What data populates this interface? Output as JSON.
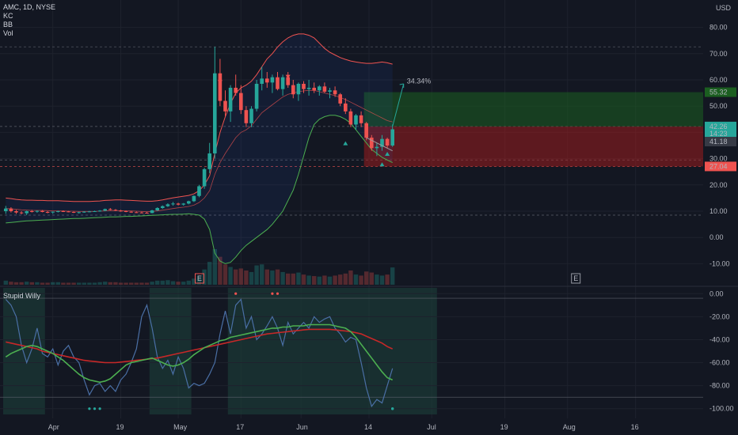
{
  "colors": {
    "background": "#131722",
    "grid": "#1e222d",
    "up": "#26a69a",
    "down": "#ef5350",
    "kc_band": "#ef5350",
    "bb_band": "#4caf50",
    "mid_line": "#ef5350",
    "willy_blue": "#4a6fa5",
    "willy_green": "#4caf50",
    "willy_red": "#c62828",
    "target_zone": "#1b5e20",
    "stop_zone": "#b71c1c",
    "axis_text": "#b2b5be"
  },
  "header": {
    "symbol": "AMC, 1D, NYSE",
    "indicators": [
      "KC",
      "BB",
      "Vol"
    ],
    "currency": "USD"
  },
  "lower_pane": {
    "title": "Stupid Willy"
  },
  "price_tags": {
    "target": "55.32",
    "entry": "42.26",
    "entry_sub": "14:23",
    "close": "41.18",
    "stop": "27.04",
    "gain_label": "34.34%"
  },
  "event_markers": [
    "E",
    "E"
  ],
  "chart_data": [
    {
      "type": "candlestick",
      "title": "",
      "ylim": [
        -15,
        85
      ],
      "y_ticks": [
        "80.00",
        "70.00",
        "60.00",
        "50.00",
        "40.00",
        "30.00",
        "20.00",
        "10.00",
        "0.00",
        "-10.00"
      ],
      "x_ticks": [
        "Apr",
        "19",
        "May",
        "17",
        "Jun",
        "14",
        "Jul",
        "19",
        "Aug",
        "16"
      ],
      "candles": [
        [
          10,
          12,
          9,
          11
        ],
        [
          11,
          11.5,
          9.5,
          10
        ],
        [
          10,
          10.5,
          9,
          9.5
        ],
        [
          9.5,
          10,
          8.8,
          9.2
        ],
        [
          9.2,
          10.2,
          8.5,
          10
        ],
        [
          10,
          10.5,
          9.5,
          9.8
        ],
        [
          9.8,
          10.3,
          9.4,
          10.1
        ],
        [
          10.1,
          10.4,
          9.6,
          9.7
        ],
        [
          9.7,
          10,
          9.2,
          9.5
        ],
        [
          9.5,
          9.9,
          9,
          9.8
        ],
        [
          9.8,
          10.2,
          9.5,
          10
        ],
        [
          10,
          10.3,
          9.7,
          9.9
        ],
        [
          9.9,
          10.1,
          9.6,
          9.7
        ],
        [
          9.7,
          9.9,
          9.3,
          9.5
        ],
        [
          9.5,
          9.8,
          9.1,
          9.6
        ],
        [
          9.6,
          10,
          9.4,
          9.8
        ],
        [
          9.8,
          10.1,
          9.6,
          9.9
        ],
        [
          9.9,
          10.2,
          9.7,
          10
        ],
        [
          10,
          10.4,
          9.8,
          10.2
        ],
        [
          10.2,
          11,
          10,
          10.8
        ],
        [
          10.8,
          11.2,
          10.3,
          10.5
        ],
        [
          10.5,
          10.8,
          10,
          10.2
        ],
        [
          10.2,
          10.5,
          9.8,
          10
        ],
        [
          10,
          10.3,
          9.6,
          9.8
        ],
        [
          9.8,
          10,
          9.4,
          9.6
        ],
        [
          9.6,
          9.9,
          9.3,
          9.5
        ],
        [
          9.5,
          9.8,
          9.2,
          9.4
        ],
        [
          9.4,
          9.7,
          9.1,
          9.3
        ],
        [
          9.3,
          10.5,
          9.2,
          10.3
        ],
        [
          10.3,
          11.5,
          10.1,
          11.2
        ],
        [
          11.2,
          12.2,
          10.9,
          11.9
        ],
        [
          11.9,
          13,
          11.6,
          12.6
        ],
        [
          12.6,
          13.5,
          12.1,
          12.9
        ],
        [
          12.9,
          13.2,
          12.2,
          12.5
        ],
        [
          12.5,
          13.1,
          12.1,
          12.9
        ],
        [
          12.9,
          14,
          12.6,
          13.8
        ],
        [
          13.8,
          16,
          13.5,
          15.8
        ],
        [
          15.8,
          20,
          15.3,
          19.5
        ],
        [
          19.5,
          26.5,
          18.5,
          26
        ],
        [
          26,
          36,
          24.5,
          32
        ],
        [
          32,
          72.6,
          30,
          62.5
        ],
        [
          62.5,
          68,
          50,
          52
        ],
        [
          52,
          56,
          46,
          48
        ],
        [
          48,
          58,
          44,
          57
        ],
        [
          57,
          62,
          54,
          55
        ],
        [
          55,
          58,
          47,
          48.5
        ],
        [
          48.5,
          50,
          42,
          43.5
        ],
        [
          43.5,
          50,
          42,
          49
        ],
        [
          49,
          60,
          48,
          58.5
        ],
        [
          58.5,
          65,
          56,
          60.5
        ],
        [
          60.5,
          63,
          57,
          59
        ],
        [
          59,
          62,
          55,
          61
        ],
        [
          61,
          63,
          56,
          56.5
        ],
        [
          56.5,
          62,
          54,
          61
        ],
        [
          61,
          63,
          57,
          58
        ],
        [
          58,
          60,
          53,
          54.5
        ],
        [
          54.5,
          59,
          52,
          58.5
        ],
        [
          58.5,
          59.5,
          55,
          56.5
        ],
        [
          56.5,
          60,
          54,
          57
        ],
        [
          57,
          59,
          55,
          56
        ],
        [
          56,
          58,
          54,
          57.5
        ],
        [
          57.5,
          59,
          55,
          55.5
        ],
        [
          55.5,
          57,
          53,
          56
        ],
        [
          56,
          57.5,
          53.5,
          54.5
        ],
        [
          54.5,
          55,
          50,
          51
        ],
        [
          51,
          53,
          47,
          48
        ],
        [
          48,
          49,
          42,
          43
        ],
        [
          43,
          47,
          41,
          46.5
        ],
        [
          46.5,
          48,
          42,
          43.5
        ],
        [
          43.5,
          44,
          37,
          38
        ],
        [
          38,
          39,
          33,
          34
        ],
        [
          34,
          36,
          31,
          34.5
        ],
        [
          34.5,
          39,
          33,
          37.5
        ],
        [
          37.5,
          38,
          34,
          35
        ],
        [
          35,
          43,
          34.5,
          41.18
        ]
      ],
      "keltner_upper": [
        15,
        14.8,
        14.5,
        14.3,
        14.2,
        14.2,
        14.1,
        14.1,
        14,
        14,
        14,
        13.9,
        13.8,
        13.7,
        13.7,
        13.7,
        13.7,
        13.8,
        13.9,
        14.1,
        14.2,
        14.3,
        14.3,
        14.2,
        14.1,
        14,
        13.9,
        13.8,
        13.8,
        14,
        14.3,
        14.7,
        15.1,
        15.4,
        15.7,
        16,
        16.6,
        17.8,
        20,
        23.5,
        32,
        40,
        46,
        51,
        55,
        57,
        58,
        59.5,
        62,
        65,
        68,
        70,
        72.5,
        74.5,
        76,
        77,
        77.5,
        77.5,
        77,
        76,
        74,
        72,
        70.5,
        69.5,
        68.5,
        67.8,
        67.2,
        66.8,
        66.5,
        66.3,
        66.3,
        66.5,
        66.8,
        66.5,
        66
      ],
      "keltner_mid": [
        11,
        10.9,
        10.7,
        10.5,
        10.4,
        10.3,
        10.3,
        10.3,
        10.2,
        10.1,
        10.1,
        10.1,
        10,
        10,
        9.9,
        9.9,
        9.9,
        9.9,
        10,
        10.1,
        10.2,
        10.2,
        10.2,
        10.1,
        10.1,
        10,
        9.9,
        9.8,
        9.9,
        10.1,
        10.4,
        10.7,
        11,
        11.3,
        11.5,
        11.8,
        12.3,
        13.3,
        15,
        17.8,
        24,
        28.5,
        32,
        35,
        38,
        40,
        41,
        42.5,
        45,
        47.5,
        49,
        50.5,
        52,
        53.5,
        54.5,
        55,
        55.5,
        55.8,
        56,
        56,
        55.5,
        55,
        54.5,
        54,
        53.3,
        52.5,
        51.5,
        50.5,
        49.5,
        48.5,
        47.5,
        46.5,
        45.5,
        44.5,
        44
      ],
      "bollinger_lower": [
        5.5,
        5.7,
        5.9,
        6.1,
        6.3,
        6.4,
        6.5,
        6.6,
        6.7,
        6.8,
        6.9,
        7,
        7.1,
        7.2,
        7.2,
        7.3,
        7.4,
        7.5,
        7.6,
        7.7,
        7.8,
        7.8,
        7.9,
        8,
        8,
        8.1,
        8.2,
        8.3,
        8.4,
        8.5,
        8.6,
        8.7,
        8.8,
        8.8,
        8.9,
        9,
        8.8,
        8.5,
        7,
        3,
        -6,
        -9,
        -10,
        -9.5,
        -7.5,
        -5,
        -3,
        -1.5,
        0,
        1.5,
        3,
        5,
        7.5,
        10,
        14,
        18,
        24,
        31,
        38,
        43,
        45,
        46,
        46.5,
        46.5,
        46,
        45,
        43.5,
        41,
        38.5,
        36,
        33.5,
        32,
        30.5,
        29.5,
        28.5
      ],
      "volume": [
        8,
        6,
        5,
        5,
        6,
        5,
        5,
        4,
        4,
        5,
        5,
        4,
        4,
        4,
        4,
        4,
        4,
        4,
        5,
        6,
        5,
        5,
        4,
        4,
        4,
        4,
        4,
        4,
        6,
        8,
        8,
        9,
        7,
        6,
        6,
        8,
        12,
        18,
        30,
        45,
        70,
        55,
        40,
        35,
        30,
        32,
        28,
        25,
        38,
        40,
        30,
        28,
        30,
        25,
        22,
        22,
        24,
        20,
        18,
        17,
        16,
        18,
        16,
        18,
        20,
        22,
        28,
        20,
        18,
        26,
        24,
        20,
        18,
        20,
        34
      ]
    },
    {
      "type": "line",
      "title": "",
      "ylim": [
        -105,
        5
      ],
      "y_ticks": [
        "0.00",
        "-20.00",
        "-40.00",
        "-60.00",
        "-80.00",
        "-100.00"
      ],
      "series": [
        {
          "name": "",
          "values": [
            -5,
            -10,
            -20,
            -45,
            -60,
            -48,
            -30,
            -52,
            -55,
            -48,
            -62,
            -50,
            -45,
            -55,
            -60,
            -75,
            -88,
            -80,
            -78,
            -85,
            -80,
            -85,
            -75,
            -70,
            -60,
            -48,
            -20,
            -10,
            -30,
            -55,
            -65,
            -58,
            -70,
            -55,
            -65,
            -82,
            -78,
            -80,
            -78,
            -70,
            -60,
            -35,
            -15,
            -35,
            -10,
            -5,
            -30,
            -20,
            -40,
            -35,
            -28,
            -20,
            -30,
            -45,
            -25,
            -35,
            -30,
            -25,
            -30,
            -20,
            -25,
            -22,
            -20,
            -30,
            -35,
            -42,
            -38,
            -40,
            -60,
            -82,
            -98,
            -92,
            -95,
            -80,
            -65
          ]
        },
        {
          "name": "",
          "values": [
            -55,
            -52,
            -50,
            -48,
            -46,
            -45,
            -46,
            -48,
            -50,
            -52,
            -55,
            -58,
            -62,
            -66,
            -70,
            -73,
            -75,
            -76,
            -77,
            -76,
            -74,
            -70,
            -66,
            -62,
            -60,
            -59,
            -58,
            -57,
            -56,
            -58,
            -60,
            -62,
            -63,
            -62,
            -60,
            -57,
            -53,
            -50,
            -47,
            -45,
            -43,
            -41,
            -40,
            -38,
            -37,
            -36,
            -35,
            -34,
            -33,
            -32,
            -31,
            -30,
            -30,
            -29,
            -29,
            -28,
            -28,
            -28,
            -27,
            -27,
            -27,
            -27,
            -27,
            -28,
            -29,
            -30,
            -33,
            -38,
            -44,
            -50,
            -56,
            -62,
            -68,
            -73,
            -75
          ]
        },
        {
          "name": "",
          "values": [
            -42,
            -43,
            -44,
            -45,
            -46,
            -47,
            -48,
            -50,
            -51,
            -52,
            -53,
            -54,
            -55,
            -56,
            -57,
            -58,
            -58.5,
            -59,
            -59.5,
            -60,
            -60,
            -60,
            -59.5,
            -59,
            -58.5,
            -58,
            -57.5,
            -57,
            -56.5,
            -56,
            -55,
            -54,
            -53,
            -52,
            -51,
            -50,
            -49,
            -48,
            -47,
            -46,
            -45,
            -44,
            -43,
            -42,
            -41,
            -40,
            -39,
            -38,
            -37,
            -36,
            -35,
            -34.5,
            -34,
            -33.5,
            -33,
            -32.5,
            -32,
            -31.5,
            -31,
            -31,
            -31,
            -31,
            -31,
            -31.5,
            -32,
            -32.5,
            -33,
            -34,
            -35,
            -37,
            -39,
            -41,
            -43,
            -46,
            -48
          ]
        }
      ]
    }
  ]
}
